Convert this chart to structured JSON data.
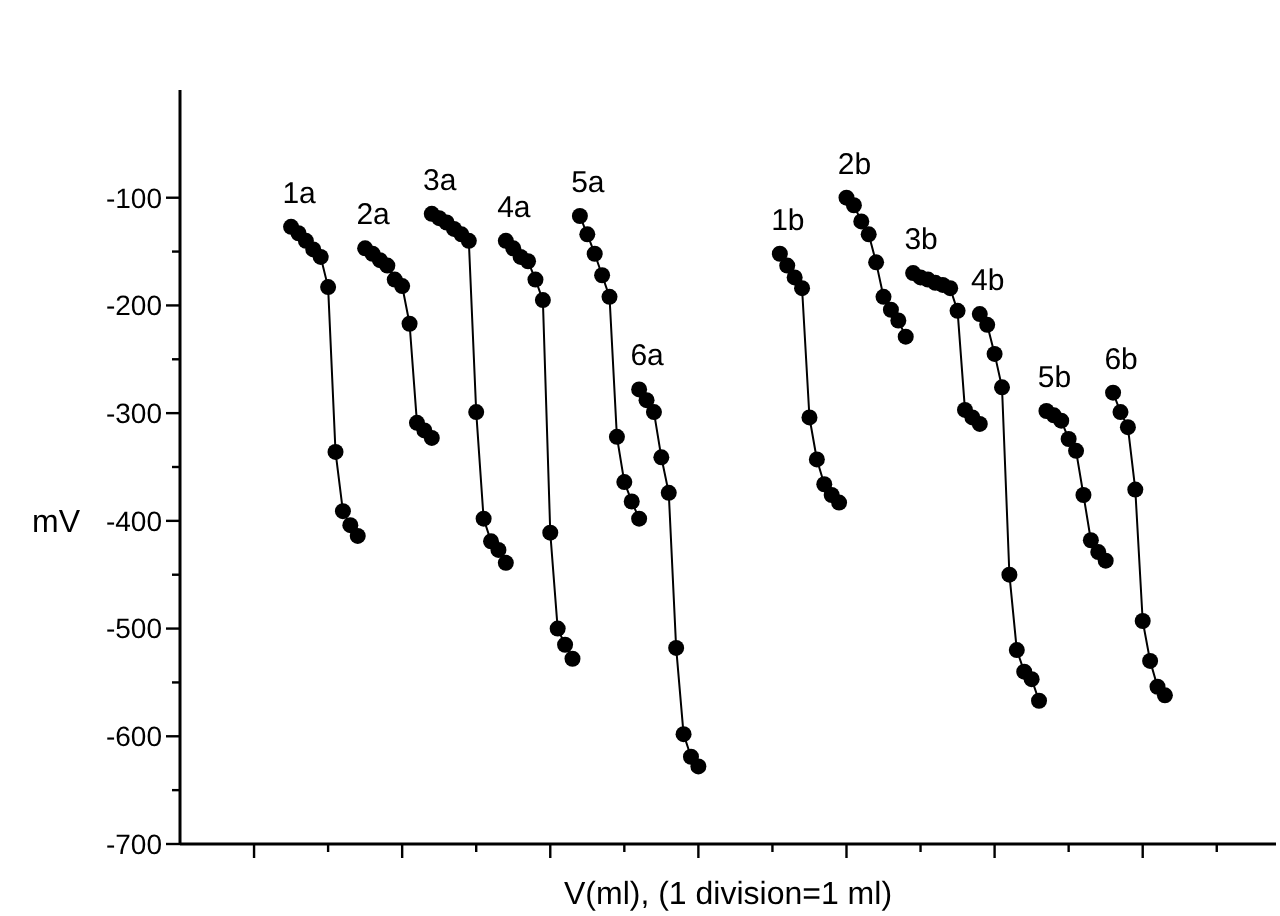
{
  "chart_data": {
    "type": "line",
    "xlabel": "V(ml), (1 division=1 ml)",
    "ylabel": "mV",
    "ylim": [
      -700,
      0
    ],
    "categories": [
      null,
      null,
      null,
      null,
      null,
      null,
      null,
      null,
      null,
      null,
      null,
      null,
      null,
      null,
      null,
      null,
      null,
      null,
      null,
      null,
      null,
      null,
      null,
      null,
      null,
      null,
      null,
      null,
      null,
      null,
      null,
      null,
      null,
      null,
      null,
      null,
      null,
      null,
      null,
      null,
      null,
      null,
      null,
      null,
      null,
      null,
      null,
      null,
      null,
      null,
      null,
      null,
      null,
      null,
      null,
      null,
      null,
      null,
      null,
      null,
      null,
      null,
      null,
      null,
      null,
      null,
      null,
      null,
      null,
      null,
      null,
      null,
      null,
      null,
      null,
      null,
      null,
      null,
      null,
      null,
      null,
      null,
      null,
      null,
      null,
      null,
      null,
      null,
      null,
      null,
      null,
      null,
      null,
      null,
      null,
      null,
      null,
      null,
      null,
      null,
      null,
      null,
      null,
      null,
      null,
      null,
      null,
      null,
      null,
      null,
      null,
      null,
      null,
      null,
      null,
      null,
      null,
      null,
      null,
      null,
      null,
      null,
      null,
      null,
      null,
      null,
      null,
      null,
      null,
      null,
      null,
      null,
      null,
      null,
      null,
      null,
      null,
      null,
      null,
      null,
      null,
      null,
      null,
      null,
      null,
      null,
      null,
      null,
      null
    ],
    "yticks": [
      -700,
      {
        "value": -650,
        "label": null
      },
      -600,
      {
        "value": -550,
        "label": null
      },
      -500,
      {
        "value": -450,
        "label": null
      },
      -400,
      {
        "value": -350,
        "label": null
      },
      -300,
      {
        "value": -250,
        "label": null
      },
      -200,
      {
        "value": -150,
        "label": null
      },
      -100
    ],
    "tick_labels": "y",
    "grid": false,
    "marker": "circle",
    "line_style": "solid",
    "series": [
      {
        "name": "1a",
        "color": "#000000",
        "values": [
          null,
          null,
          null,
          null,
          null,
          null,
          null,
          null,
          null,
          null,
          null,
          null,
          null,
          null,
          null,
          -127,
          -133,
          -140,
          -148,
          -155,
          -183,
          -336,
          -391,
          -404,
          -414,
          null,
          null,
          null,
          null,
          null,
          null,
          null,
          null,
          null,
          null,
          null,
          null,
          null,
          null,
          null,
          null,
          null,
          null,
          null,
          null,
          null,
          null,
          null,
          null,
          null,
          null,
          null,
          null,
          null,
          null,
          null,
          null,
          null,
          null,
          null,
          null,
          null,
          null,
          null,
          null,
          null,
          null,
          null,
          null,
          null,
          null,
          null,
          null,
          null,
          null,
          null,
          null,
          null,
          null,
          null,
          null,
          null,
          null,
          null,
          null,
          null,
          null,
          null,
          null,
          null,
          null,
          null,
          null,
          null,
          null,
          null,
          null,
          null,
          null,
          null,
          null,
          null,
          null,
          null,
          null,
          null,
          null,
          null,
          null,
          null,
          null,
          null,
          null,
          null,
          null,
          null,
          null,
          null,
          null,
          null,
          null,
          null,
          null,
          null,
          null,
          null,
          null,
          null,
          null,
          null,
          null,
          null,
          null,
          null,
          null,
          null,
          null,
          null,
          null,
          null,
          null,
          null,
          null,
          null,
          null,
          null,
          null,
          null,
          null
        ]
      },
      {
        "name": "2a",
        "color": "#000000",
        "values": [
          null,
          null,
          null,
          null,
          null,
          null,
          null,
          null,
          null,
          null,
          null,
          null,
          null,
          null,
          null,
          null,
          null,
          null,
          null,
          null,
          null,
          null,
          null,
          null,
          null,
          -147,
          -152,
          -158,
          -163,
          -176,
          -182,
          -217,
          -309,
          -316,
          -323,
          null,
          null,
          null,
          null,
          null,
          null,
          null,
          null,
          null,
          null,
          null,
          null,
          null,
          null,
          null,
          null,
          null,
          null,
          null,
          null,
          null,
          null,
          null,
          null,
          null,
          null,
          null,
          null,
          null,
          null,
          null,
          null,
          null,
          null,
          null,
          null,
          null,
          null,
          null,
          null,
          null,
          null,
          null,
          null,
          null,
          null,
          null,
          null,
          null,
          null,
          null,
          null,
          null,
          null,
          null,
          null,
          null,
          null,
          null,
          null,
          null,
          null,
          null,
          null,
          null,
          null,
          null,
          null,
          null,
          null,
          null,
          null,
          null,
          null,
          null,
          null,
          null,
          null,
          null,
          null,
          null,
          null,
          null,
          null,
          null,
          null,
          null,
          null,
          null,
          null,
          null,
          null,
          null,
          null,
          null,
          null,
          null,
          null,
          null,
          null,
          null,
          null,
          null,
          null,
          null,
          null,
          null,
          null,
          null,
          null,
          null,
          null,
          null,
          null
        ]
      },
      {
        "name": "3a",
        "color": "#000000",
        "values": [
          null,
          null,
          null,
          null,
          null,
          null,
          null,
          null,
          null,
          null,
          null,
          null,
          null,
          null,
          null,
          null,
          null,
          null,
          null,
          null,
          null,
          null,
          null,
          null,
          null,
          null,
          null,
          null,
          null,
          null,
          null,
          null,
          null,
          null,
          -115,
          -119,
          -123,
          -129,
          -134,
          -140,
          -299,
          -398,
          -419,
          -427,
          -439,
          null,
          null,
          null,
          null,
          null,
          null,
          null,
          null,
          null,
          null,
          null,
          null,
          null,
          null,
          null,
          null,
          null,
          null,
          null,
          null,
          null,
          null,
          null,
          null,
          null,
          null,
          null,
          null,
          null,
          null,
          null,
          null,
          null,
          null,
          null,
          null,
          null,
          null,
          null,
          null,
          null,
          null,
          null,
          null,
          null,
          null,
          null,
          null,
          null,
          null,
          null,
          null,
          null,
          null,
          null,
          null,
          null,
          null,
          null,
          null,
          null,
          null,
          null,
          null,
          null,
          null,
          null,
          null,
          null,
          null,
          null,
          null,
          null,
          null,
          null,
          null,
          null,
          null,
          null,
          null,
          null,
          null,
          null,
          null,
          null,
          null,
          null,
          null,
          null,
          null,
          null,
          null,
          null,
          null,
          null,
          null,
          null,
          null,
          null,
          null,
          null,
          null,
          null,
          null
        ]
      },
      {
        "name": "4a",
        "color": "#000000",
        "values": [
          null,
          null,
          null,
          null,
          null,
          null,
          null,
          null,
          null,
          null,
          null,
          null,
          null,
          null,
          null,
          null,
          null,
          null,
          null,
          null,
          null,
          null,
          null,
          null,
          null,
          null,
          null,
          null,
          null,
          null,
          null,
          null,
          null,
          null,
          null,
          null,
          null,
          null,
          null,
          null,
          null,
          null,
          null,
          null,
          -140,
          -147,
          -155,
          -159,
          -176,
          -195,
          -411,
          -500,
          -515,
          -528,
          null,
          null,
          null,
          null,
          null,
          null,
          null,
          null,
          null,
          null,
          null,
          null,
          null,
          null,
          null,
          null,
          null,
          null,
          null,
          null,
          null,
          null,
          null,
          null,
          null,
          null,
          null,
          null,
          null,
          null,
          null,
          null,
          null,
          null,
          null,
          null,
          null,
          null,
          null,
          null,
          null,
          null,
          null,
          null,
          null,
          null,
          null,
          null,
          null,
          null,
          null,
          null,
          null,
          null,
          null,
          null,
          null,
          null,
          null,
          null,
          null,
          null,
          null,
          null,
          null,
          null,
          null,
          null,
          null,
          null,
          null,
          null,
          null,
          null,
          null,
          null,
          null,
          null,
          null,
          null,
          null,
          null,
          null,
          null,
          null,
          null,
          null,
          null,
          null,
          null,
          null,
          null,
          null,
          null,
          null
        ]
      },
      {
        "name": "5a",
        "color": "#000000",
        "values": [
          null,
          null,
          null,
          null,
          null,
          null,
          null,
          null,
          null,
          null,
          null,
          null,
          null,
          null,
          null,
          null,
          null,
          null,
          null,
          null,
          null,
          null,
          null,
          null,
          null,
          null,
          null,
          null,
          null,
          null,
          null,
          null,
          null,
          null,
          null,
          null,
          null,
          null,
          null,
          null,
          null,
          null,
          null,
          null,
          null,
          null,
          null,
          null,
          null,
          null,
          null,
          null,
          null,
          null,
          -117,
          -134,
          -152,
          -172,
          -192,
          -322,
          -364,
          -382,
          -398,
          null,
          null,
          null,
          null,
          null,
          null,
          null,
          null,
          null,
          null,
          null,
          null,
          null,
          null,
          null,
          null,
          null,
          null,
          null,
          null,
          null,
          null,
          null,
          null,
          null,
          null,
          null,
          null,
          null,
          null,
          null,
          null,
          null,
          null,
          null,
          null,
          null,
          null,
          null,
          null,
          null,
          null,
          null,
          null,
          null,
          null,
          null,
          null,
          null,
          null,
          null,
          null,
          null,
          null,
          null,
          null,
          null,
          null,
          null,
          null,
          null,
          null,
          null,
          null,
          null,
          null,
          null,
          null,
          null,
          null,
          null,
          null,
          null,
          null,
          null,
          null,
          null,
          null,
          null,
          null,
          null,
          null,
          null,
          null,
          null,
          null
        ]
      },
      {
        "name": "6a",
        "color": "#000000",
        "values": [
          null,
          null,
          null,
          null,
          null,
          null,
          null,
          null,
          null,
          null,
          null,
          null,
          null,
          null,
          null,
          null,
          null,
          null,
          null,
          null,
          null,
          null,
          null,
          null,
          null,
          null,
          null,
          null,
          null,
          null,
          null,
          null,
          null,
          null,
          null,
          null,
          null,
          null,
          null,
          null,
          null,
          null,
          null,
          null,
          null,
          null,
          null,
          null,
          null,
          null,
          null,
          null,
          null,
          null,
          null,
          null,
          null,
          null,
          null,
          null,
          null,
          null,
          -278,
          -288,
          -299,
          -341,
          -374,
          -518,
          -598,
          -619,
          -628,
          null,
          null,
          null,
          null,
          null,
          null,
          null,
          null,
          null,
          null,
          null,
          null,
          null,
          null,
          null,
          null,
          null,
          null,
          null,
          null,
          null,
          null,
          null,
          null,
          null,
          null,
          null,
          null,
          null,
          null,
          null,
          null,
          null,
          null,
          null,
          null,
          null,
          null,
          null,
          null,
          null,
          null,
          null,
          null,
          null,
          null,
          null,
          null,
          null,
          null,
          null,
          null,
          null,
          null,
          null,
          null,
          null,
          null,
          null,
          null,
          null,
          null,
          null,
          null,
          null,
          null,
          null,
          null,
          null,
          null,
          null,
          null,
          null,
          null,
          null,
          null,
          null,
          null
        ]
      },
      {
        "name": "1b",
        "color": "#000000",
        "values": [
          null,
          null,
          null,
          null,
          null,
          null,
          null,
          null,
          null,
          null,
          null,
          null,
          null,
          null,
          null,
          null,
          null,
          null,
          null,
          null,
          null,
          null,
          null,
          null,
          null,
          null,
          null,
          null,
          null,
          null,
          null,
          null,
          null,
          null,
          null,
          null,
          null,
          null,
          null,
          null,
          null,
          null,
          null,
          null,
          null,
          null,
          null,
          null,
          null,
          null,
          null,
          null,
          null,
          null,
          null,
          null,
          null,
          null,
          null,
          null,
          null,
          null,
          null,
          null,
          null,
          null,
          null,
          null,
          null,
          null,
          null,
          null,
          null,
          null,
          null,
          null,
          null,
          null,
          null,
          null,
          null,
          -152,
          -163,
          -174,
          -184,
          -304,
          -343,
          -366,
          -376,
          -383,
          null,
          null,
          null,
          null,
          null,
          null,
          null,
          null,
          null,
          null,
          null,
          null,
          null,
          null,
          null,
          null,
          null,
          null,
          null,
          null,
          null,
          null,
          null,
          null,
          null,
          null,
          null,
          null,
          null,
          null,
          null,
          null,
          null,
          null,
          null,
          null,
          null,
          null,
          null,
          null,
          null,
          null,
          null,
          null,
          null,
          null,
          null,
          null,
          null,
          null,
          null,
          null,
          null,
          null,
          null,
          null,
          null,
          null,
          null
        ]
      },
      {
        "name": "2b",
        "color": "#000000",
        "values": [
          null,
          null,
          null,
          null,
          null,
          null,
          null,
          null,
          null,
          null,
          null,
          null,
          null,
          null,
          null,
          null,
          null,
          null,
          null,
          null,
          null,
          null,
          null,
          null,
          null,
          null,
          null,
          null,
          null,
          null,
          null,
          null,
          null,
          null,
          null,
          null,
          null,
          null,
          null,
          null,
          null,
          null,
          null,
          null,
          null,
          null,
          null,
          null,
          null,
          null,
          null,
          null,
          null,
          null,
          null,
          null,
          null,
          null,
          null,
          null,
          null,
          null,
          null,
          null,
          null,
          null,
          null,
          null,
          null,
          null,
          null,
          null,
          null,
          null,
          null,
          null,
          null,
          null,
          null,
          null,
          null,
          null,
          null,
          null,
          null,
          null,
          null,
          null,
          null,
          null,
          -100,
          -107,
          -122,
          -134,
          -160,
          -192,
          -204,
          -214,
          -229,
          null,
          null,
          null,
          null,
          null,
          null,
          null,
          null,
          null,
          null,
          null,
          null,
          null,
          null,
          null,
          null,
          null,
          null,
          null,
          null,
          null,
          null,
          null,
          null,
          null,
          null,
          null,
          null,
          null,
          null,
          null,
          null,
          null,
          null,
          null,
          null,
          null,
          null,
          null,
          null,
          null,
          null,
          null,
          null,
          null,
          null,
          null,
          null,
          null,
          null
        ]
      },
      {
        "name": "3b",
        "color": "#000000",
        "values": [
          null,
          null,
          null,
          null,
          null,
          null,
          null,
          null,
          null,
          null,
          null,
          null,
          null,
          null,
          null,
          null,
          null,
          null,
          null,
          null,
          null,
          null,
          null,
          null,
          null,
          null,
          null,
          null,
          null,
          null,
          null,
          null,
          null,
          null,
          null,
          null,
          null,
          null,
          null,
          null,
          null,
          null,
          null,
          null,
          null,
          null,
          null,
          null,
          null,
          null,
          null,
          null,
          null,
          null,
          null,
          null,
          null,
          null,
          null,
          null,
          null,
          null,
          null,
          null,
          null,
          null,
          null,
          null,
          null,
          null,
          null,
          null,
          null,
          null,
          null,
          null,
          null,
          null,
          null,
          null,
          null,
          null,
          null,
          null,
          null,
          null,
          null,
          null,
          null,
          null,
          null,
          null,
          null,
          null,
          null,
          null,
          null,
          null,
          null,
          -170,
          -174,
          -176,
          -179,
          -181,
          -184,
          -205,
          -297,
          -304,
          -310,
          null,
          null,
          null,
          null,
          null,
          null,
          null,
          null,
          null,
          null,
          null,
          null,
          null,
          null,
          null,
          null,
          null,
          null,
          null,
          null,
          null,
          null,
          null,
          null,
          null,
          null,
          null,
          null,
          null,
          null,
          null,
          null,
          null,
          null,
          null,
          null,
          null,
          null,
          null,
          null
        ]
      },
      {
        "name": "4b",
        "color": "#000000",
        "values": [
          null,
          null,
          null,
          null,
          null,
          null,
          null,
          null,
          null,
          null,
          null,
          null,
          null,
          null,
          null,
          null,
          null,
          null,
          null,
          null,
          null,
          null,
          null,
          null,
          null,
          null,
          null,
          null,
          null,
          null,
          null,
          null,
          null,
          null,
          null,
          null,
          null,
          null,
          null,
          null,
          null,
          null,
          null,
          null,
          null,
          null,
          null,
          null,
          null,
          null,
          null,
          null,
          null,
          null,
          null,
          null,
          null,
          null,
          null,
          null,
          null,
          null,
          null,
          null,
          null,
          null,
          null,
          null,
          null,
          null,
          null,
          null,
          null,
          null,
          null,
          null,
          null,
          null,
          null,
          null,
          null,
          null,
          null,
          null,
          null,
          null,
          null,
          null,
          null,
          null,
          null,
          null,
          null,
          null,
          null,
          null,
          null,
          null,
          null,
          null,
          null,
          null,
          null,
          null,
          null,
          null,
          null,
          null,
          -208,
          -218,
          -245,
          -276,
          -450,
          -520,
          -540,
          -547,
          -567,
          null,
          null,
          null,
          null,
          null,
          null,
          null,
          null,
          null,
          null,
          null,
          null,
          null,
          null,
          null,
          null,
          null,
          null,
          null,
          null,
          null,
          null,
          null,
          null,
          null,
          null,
          null,
          null,
          null,
          null,
          null,
          null
        ]
      },
      {
        "name": "5b",
        "color": "#000000",
        "values": [
          null,
          null,
          null,
          null,
          null,
          null,
          null,
          null,
          null,
          null,
          null,
          null,
          null,
          null,
          null,
          null,
          null,
          null,
          null,
          null,
          null,
          null,
          null,
          null,
          null,
          null,
          null,
          null,
          null,
          null,
          null,
          null,
          null,
          null,
          null,
          null,
          null,
          null,
          null,
          null,
          null,
          null,
          null,
          null,
          null,
          null,
          null,
          null,
          null,
          null,
          null,
          null,
          null,
          null,
          null,
          null,
          null,
          null,
          null,
          null,
          null,
          null,
          null,
          null,
          null,
          null,
          null,
          null,
          null,
          null,
          null,
          null,
          null,
          null,
          null,
          null,
          null,
          null,
          null,
          null,
          null,
          null,
          null,
          null,
          null,
          null,
          null,
          null,
          null,
          null,
          null,
          null,
          null,
          null,
          null,
          null,
          null,
          null,
          null,
          null,
          null,
          null,
          null,
          null,
          null,
          null,
          null,
          null,
          null,
          null,
          null,
          null,
          null,
          null,
          null,
          null,
          null,
          -298,
          -302,
          -307,
          -324,
          -335,
          -376,
          -418,
          -429,
          -437,
          null,
          null,
          null,
          null,
          null,
          null,
          null,
          null,
          null,
          null,
          null,
          null,
          null,
          null,
          null,
          null,
          null,
          null,
          null,
          null,
          null,
          null,
          null
        ]
      },
      {
        "name": "6b",
        "color": "#000000",
        "values": [
          null,
          null,
          null,
          null,
          null,
          null,
          null,
          null,
          null,
          null,
          null,
          null,
          null,
          null,
          null,
          null,
          null,
          null,
          null,
          null,
          null,
          null,
          null,
          null,
          null,
          null,
          null,
          null,
          null,
          null,
          null,
          null,
          null,
          null,
          null,
          null,
          null,
          null,
          null,
          null,
          null,
          null,
          null,
          null,
          null,
          null,
          null,
          null,
          null,
          null,
          null,
          null,
          null,
          null,
          null,
          null,
          null,
          null,
          null,
          null,
          null,
          null,
          null,
          null,
          null,
          null,
          null,
          null,
          null,
          null,
          null,
          null,
          null,
          null,
          null,
          null,
          null,
          null,
          null,
          null,
          null,
          null,
          null,
          null,
          null,
          null,
          null,
          null,
          null,
          null,
          null,
          null,
          null,
          null,
          null,
          null,
          null,
          null,
          null,
          null,
          null,
          null,
          null,
          null,
          null,
          null,
          null,
          null,
          null,
          null,
          null,
          null,
          null,
          null,
          null,
          null,
          null,
          null,
          null,
          null,
          null,
          null,
          null,
          null,
          null,
          null,
          -281,
          -299,
          -313,
          -371,
          -493,
          -530,
          -554,
          -562,
          null,
          null,
          null,
          null,
          null,
          null,
          null,
          null,
          null,
          null,
          null,
          null,
          null,
          null,
          null
        ]
      }
    ]
  }
}
